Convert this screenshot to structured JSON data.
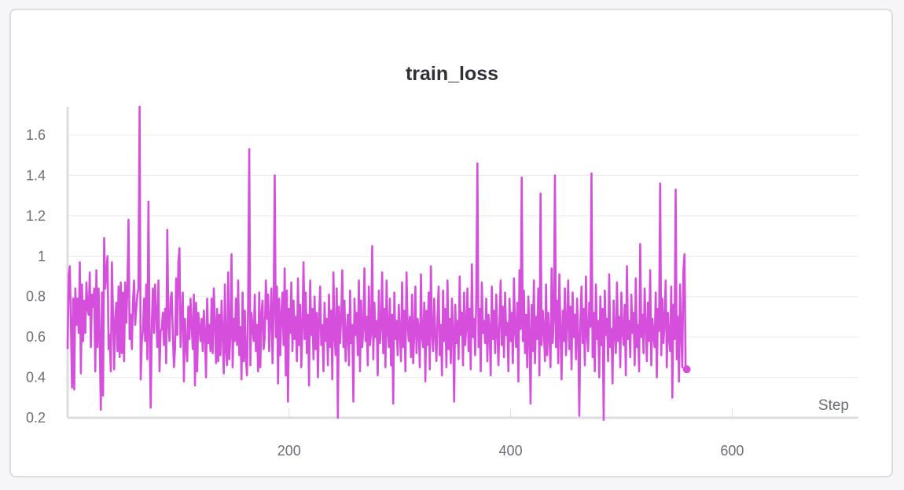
{
  "chart_data": {
    "type": "line",
    "title": "train_loss",
    "xlabel": "Step",
    "ylabel": "",
    "xlim": [
      0,
      714
    ],
    "ylim": [
      0.2,
      1.74
    ],
    "x_ticks": [
      200,
      400,
      600
    ],
    "y_ticks": [
      0.2,
      0.4,
      0.6,
      0.8,
      1,
      1.2,
      1.4,
      1.6
    ],
    "grid": true,
    "legend": "none",
    "series": [
      {
        "color": "#d64fdc",
        "x_start": 0,
        "x_step": 1,
        "values": [
          0.54,
          0.91,
          0.95,
          0.66,
          0.35,
          0.79,
          0.34,
          0.84,
          0.66,
          0.79,
          0.62,
          0.97,
          0.42,
          0.86,
          0.58,
          0.78,
          0.62,
          0.87,
          0.74,
          0.71,
          0.92,
          0.55,
          0.81,
          0.75,
          0.84,
          0.43,
          0.93,
          0.55,
          0.84,
          0.58,
          0.24,
          0.82,
          0.31,
          1.09,
          0.84,
          0.92,
          1.0,
          0.54,
          0.61,
          0.43,
          0.97,
          0.71,
          0.44,
          0.69,
          0.77,
          0.53,
          0.85,
          0.5,
          0.87,
          0.52,
          0.82,
          0.48,
          0.87,
          0.67,
          0.84,
          1.18,
          0.59,
          0.71,
          0.54,
          0.77,
          0.88,
          0.66,
          0.74,
          0.81,
          0.84,
          1.74,
          0.39,
          0.58,
          0.63,
          0.79,
          0.58,
          0.86,
          0.49,
          1.27,
          0.62,
          0.25,
          0.66,
          0.84,
          0.62,
          0.86,
          0.71,
          0.55,
          0.88,
          0.43,
          0.63,
          0.64,
          0.72,
          0.56,
          0.74,
          0.47,
          1.13,
          0.66,
          0.58,
          0.79,
          0.82,
          0.62,
          0.45,
          0.54,
          0.89,
          0.61,
          0.97,
          1.04,
          0.55,
          0.7,
          0.82,
          0.38,
          0.69,
          0.56,
          0.48,
          0.75,
          0.59,
          0.79,
          0.66,
          0.54,
          0.81,
          0.36,
          0.77,
          0.43,
          0.72,
          0.65,
          0.58,
          0.69,
          0.53,
          0.73,
          0.61,
          0.4,
          0.79,
          0.57,
          0.66,
          0.53,
          0.79,
          0.52,
          0.84,
          0.67,
          0.47,
          0.74,
          0.48,
          0.71,
          0.51,
          0.78,
          0.61,
          0.42,
          0.86,
          0.53,
          0.46,
          0.92,
          0.49,
          0.61,
          1.01,
          0.45,
          0.69,
          0.58,
          0.79,
          0.56,
          0.88,
          0.51,
          0.65,
          0.39,
          0.82,
          0.48,
          0.73,
          0.49,
          0.41,
          0.76,
          1.53,
          0.46,
          0.72,
          0.65,
          0.58,
          0.81,
          0.53,
          0.66,
          0.43,
          0.82,
          0.45,
          0.71,
          0.78,
          0.54,
          0.6,
          0.88,
          0.69,
          0.81,
          0.53,
          0.7,
          0.84,
          0.47,
          0.72,
          1.4,
          0.6,
          0.85,
          0.37,
          0.79,
          0.51,
          0.71,
          0.82,
          0.56,
          0.94,
          0.41,
          0.83,
          0.28,
          0.74,
          0.62,
          0.87,
          0.53,
          0.78,
          0.59,
          0.7,
          0.48,
          0.89,
          0.56,
          0.76,
          0.45,
          0.65,
          0.97,
          0.59,
          0.82,
          0.52,
          0.71,
          0.36,
          0.88,
          0.61,
          0.74,
          0.49,
          0.8,
          0.54,
          0.72,
          0.4,
          0.69,
          0.85,
          0.56,
          0.66,
          0.43,
          0.77,
          0.58,
          0.69,
          0.46,
          0.81,
          0.55,
          0.73,
          0.39,
          0.92,
          0.61,
          0.51,
          0.84,
          0.2,
          0.75,
          0.57,
          0.69,
          0.93,
          0.55,
          0.78,
          0.48,
          0.62,
          0.71,
          0.46,
          0.83,
          0.57,
          0.66,
          0.28,
          0.79,
          0.61,
          0.72,
          0.51,
          0.88,
          0.43,
          0.78,
          0.55,
          0.64,
          0.94,
          0.58,
          0.7,
          0.46,
          0.85,
          0.56,
          0.62,
          1.05,
          0.49,
          0.77,
          0.6,
          0.68,
          0.41,
          0.83,
          0.57,
          0.65,
          0.92,
          0.52,
          0.74,
          0.45,
          0.88,
          0.63,
          0.55,
          0.79,
          0.46,
          0.71,
          0.27,
          0.82,
          0.59,
          0.68,
          0.51,
          0.76,
          0.62,
          0.48,
          0.87,
          0.55,
          0.73,
          0.43,
          0.92,
          0.66,
          0.58,
          0.7,
          0.5,
          0.81,
          0.47,
          0.62,
          0.85,
          0.52,
          0.69,
          0.64,
          0.45,
          0.91,
          0.6,
          0.55,
          0.77,
          0.38,
          0.73,
          0.56,
          0.82,
          0.44,
          0.95,
          0.62,
          0.53,
          0.79,
          0.61,
          0.48,
          0.7,
          0.85,
          0.51,
          0.66,
          0.41,
          0.83,
          0.58,
          0.74,
          0.45,
          0.88,
          0.54,
          0.69,
          0.47,
          0.79,
          0.63,
          0.28,
          0.76,
          0.57,
          0.68,
          0.49,
          0.9,
          0.61,
          0.72,
          0.46,
          0.82,
          0.56,
          0.65,
          0.84,
          0.53,
          0.74,
          0.44,
          0.96,
          0.6,
          0.69,
          0.51,
          0.8,
          1.46,
          0.55,
          0.74,
          0.43,
          0.87,
          0.62,
          0.68,
          0.57,
          0.79,
          0.48,
          0.71,
          0.64,
          0.41,
          0.85,
          0.59,
          0.73,
          0.52,
          0.81,
          0.62,
          0.46,
          0.69,
          0.88,
          0.56,
          0.75,
          0.5,
          0.82,
          0.61,
          0.67,
          0.43,
          0.79,
          0.58,
          0.72,
          0.47,
          0.89,
          0.63,
          0.55,
          0.77,
          0.38,
          0.93,
          0.64,
          1.39,
          0.58,
          0.83,
          0.52,
          0.71,
          0.45,
          0.8,
          0.62,
          0.27,
          0.76,
          0.53,
          0.88,
          0.47,
          0.7,
          0.59,
          0.84,
          0.41,
          1.31,
          0.56,
          0.73,
          0.64,
          0.48,
          0.86,
          0.51,
          0.72,
          0.6,
          0.45,
          0.94,
          0.57,
          0.69,
          1.4,
          0.55,
          0.78,
          0.47,
          0.91,
          0.63,
          0.39,
          0.73,
          0.58,
          0.84,
          0.51,
          0.67,
          0.88,
          0.54,
          0.75,
          0.44,
          0.82,
          0.6,
          0.71,
          0.49,
          0.79,
          0.62,
          0.21,
          0.68,
          0.85,
          0.57,
          0.74,
          0.46,
          0.9,
          0.61,
          0.53,
          0.77,
          0.65,
          1.41,
          0.5,
          0.72,
          0.43,
          0.86,
          0.59,
          0.68,
          0.4,
          0.8,
          0.56,
          0.74,
          0.19,
          0.83,
          0.61,
          0.69,
          0.48,
          0.91,
          0.55,
          0.64,
          0.37,
          0.78,
          0.62,
          0.52,
          0.87,
          0.58,
          0.7,
          0.45,
          0.82,
          0.63,
          0.56,
          0.76,
          0.41,
          0.95,
          0.59,
          0.68,
          0.5,
          0.81,
          0.62,
          0.72,
          0.46,
          0.89,
          0.55,
          0.66,
          0.43,
          1.06,
          0.6,
          0.71,
          0.52,
          0.84,
          0.65,
          0.48,
          0.77,
          0.58,
          0.93,
          0.46,
          0.69,
          0.61,
          0.55,
          0.82,
          0.4,
          0.74,
          0.63,
          1.36,
          0.51,
          0.79,
          0.57,
          0.68,
          0.88,
          0.45,
          0.72,
          0.6,
          0.53,
          0.85,
          0.3,
          0.76,
          0.59,
          1.33,
          0.49,
          0.7,
          0.38,
          0.86,
          0.62,
          0.45,
          0.93,
          1.01,
          0.43,
          0.44
        ]
      }
    ]
  }
}
